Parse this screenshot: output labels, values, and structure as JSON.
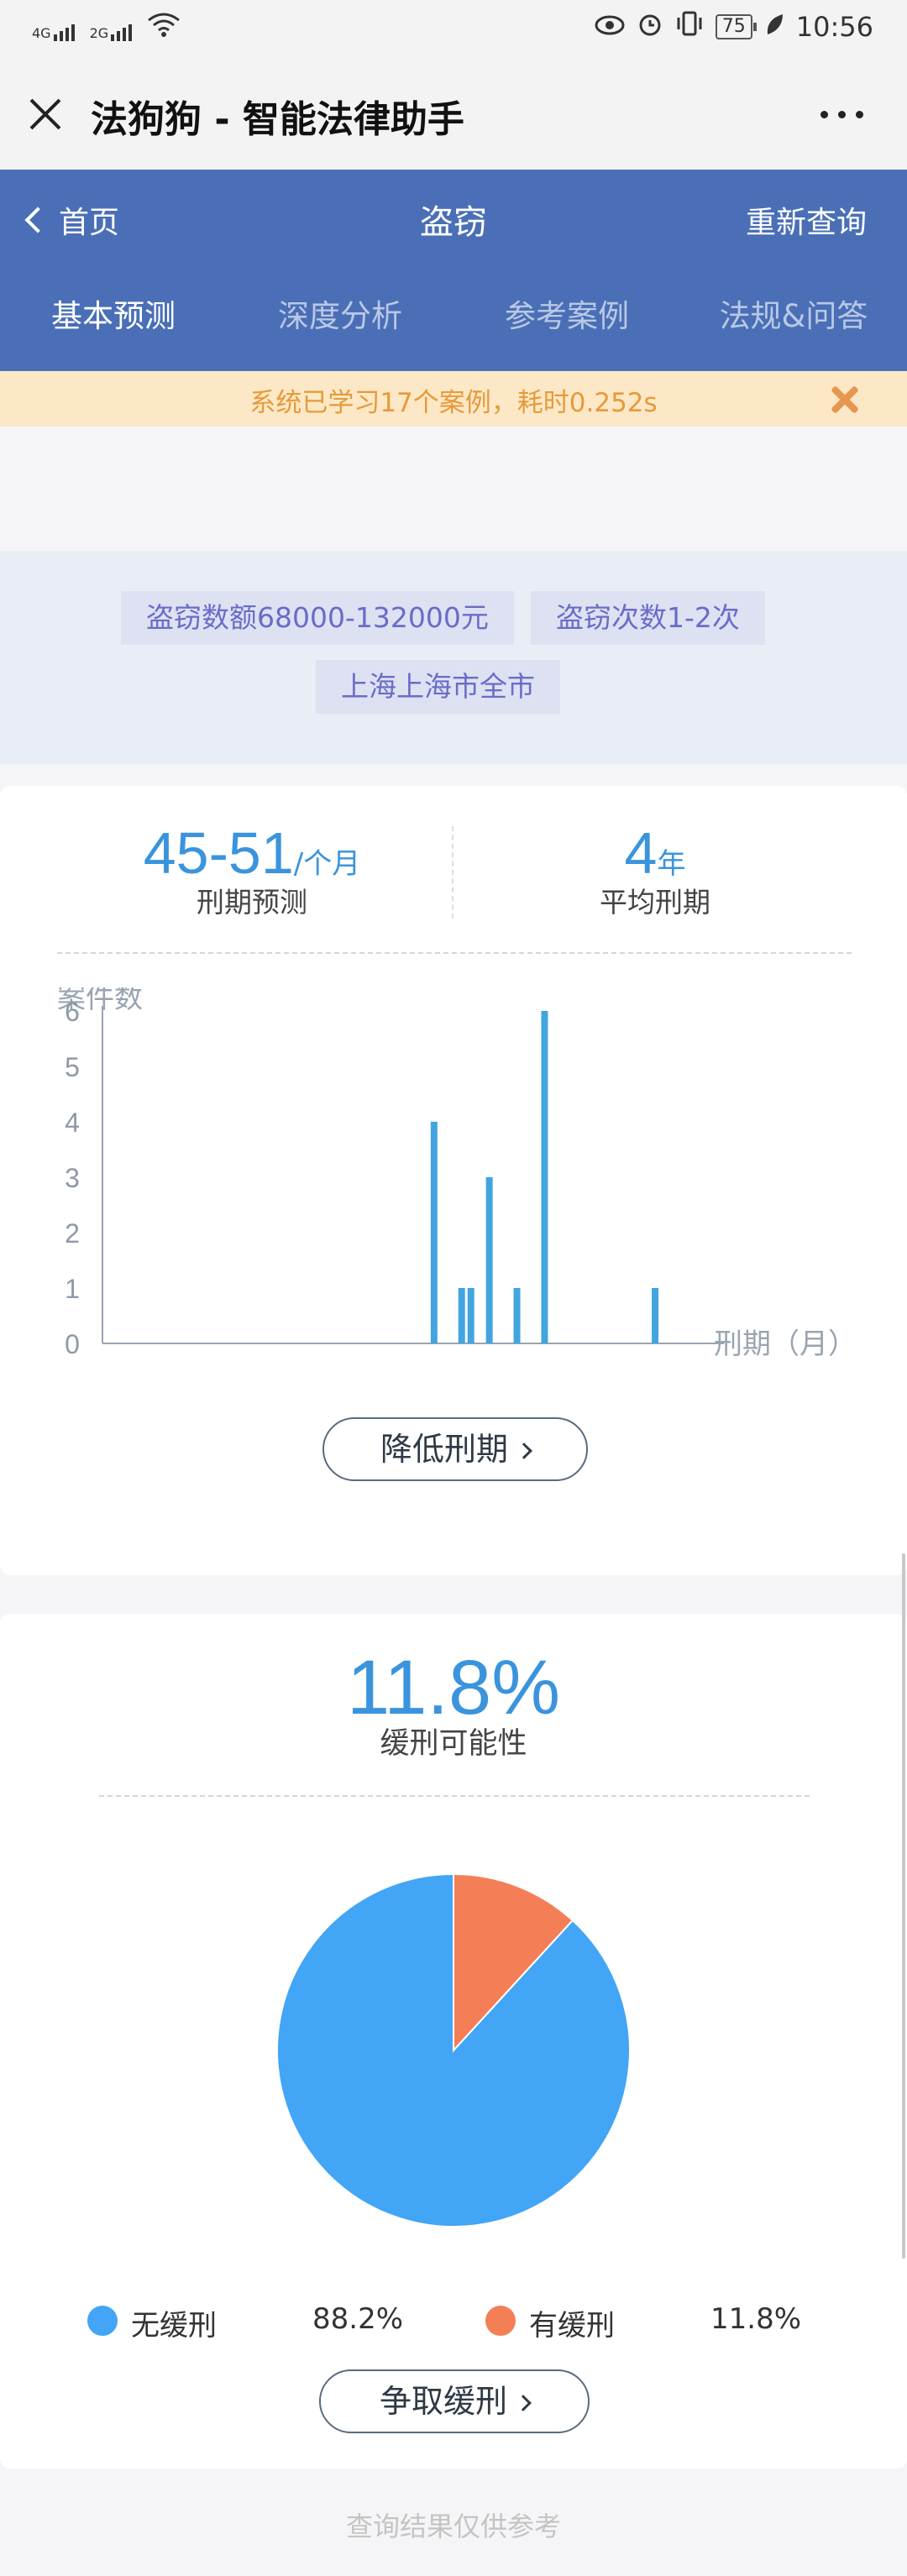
{
  "status_bar": {
    "net1": "4G",
    "net2": "2G",
    "battery": "75",
    "time": "10:56"
  },
  "title_bar": {
    "title": "法狗狗 - 智能法律助手",
    "close_icon": "close-icon",
    "more_icon": "more-dots-icon"
  },
  "header": {
    "back_label": "首页",
    "title": "盗窃",
    "requery_label": "重新查询",
    "bg_color": "#4a6fb6"
  },
  "tabs": [
    {
      "label": "基本预测",
      "active": true
    },
    {
      "label": "深度分析",
      "active": false
    },
    {
      "label": "参考案例",
      "active": false
    },
    {
      "label": "法规&问答",
      "active": false
    }
  ],
  "notice": {
    "text": "系统已学习17个案例，耗时0.252s"
  },
  "tags": [
    "盗窃数额68000-132000元",
    "盗窃次数1-2次",
    "上海上海市全市"
  ],
  "sentence": {
    "range": "45-51",
    "range_unit": "/个月",
    "range_label": "刑期预测",
    "avg": "4",
    "avg_unit": "年",
    "avg_label": "平均刑期"
  },
  "chart_data": [
    {
      "type": "bar",
      "ylabel": "案件数",
      "xlabel": "刑期（月）",
      "ylim": [
        0,
        6
      ],
      "yticks": [
        "0",
        "1",
        "2",
        "3",
        "4",
        "5",
        "6"
      ],
      "series": [
        {
          "x": [
            36,
            39,
            40,
            42,
            45,
            48,
            60
          ],
          "values": [
            4,
            1,
            1,
            3,
            1,
            6,
            1
          ]
        }
      ],
      "xlim": [
        0,
        62
      ],
      "color": "#42a5e0"
    },
    {
      "type": "pie",
      "categories": [
        "无缓刑",
        "有缓刑"
      ],
      "values": [
        88.2,
        11.8
      ],
      "colors": [
        "#42a5f5",
        "#f47f56"
      ]
    }
  ],
  "reduce_button": "降低刑期",
  "probation": {
    "value": "11.8%",
    "label": "缓刑可能性",
    "legend": [
      {
        "name": "无缓刑",
        "value": "88.2%"
      },
      {
        "name": "有缓刑",
        "value": "11.8%"
      }
    ]
  },
  "probation_button": "争取缓刑",
  "footer": "查询结果仅供参考"
}
